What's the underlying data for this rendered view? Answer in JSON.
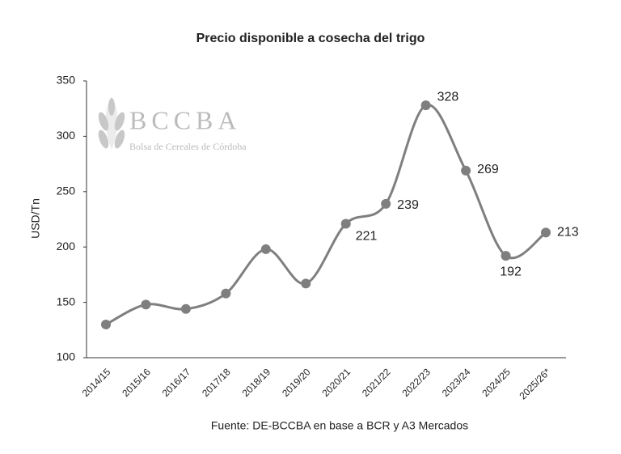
{
  "chart_data": {
    "type": "line",
    "title": "Precio disponible a cosecha del trigo",
    "y_label": "USD/Tn",
    "source": "Fuente: DE-BCCBA en base a BCR y A3 Mercados",
    "watermark": {
      "name": "BCCBA",
      "subtitle": "Bolsa de Cereales de Córdoba"
    },
    "categories": [
      "2014/15",
      "2015/16",
      "2016/17",
      "2017/18",
      "2018/19",
      "2019/20",
      "2020/21",
      "2021/22",
      "2022/23",
      "2023/24",
      "2024/25",
      "2025/26*"
    ],
    "values": [
      130,
      148,
      144,
      158,
      198,
      167,
      221,
      239,
      328,
      269,
      192,
      213
    ],
    "value_labels": [
      null,
      null,
      null,
      null,
      null,
      null,
      "221",
      "239",
      "328",
      "269",
      "192",
      "213"
    ],
    "color": "#7f7f7f",
    "ylim": [
      100,
      350
    ],
    "yticks": [
      100,
      150,
      200,
      250,
      300,
      350
    ],
    "grid": false
  }
}
